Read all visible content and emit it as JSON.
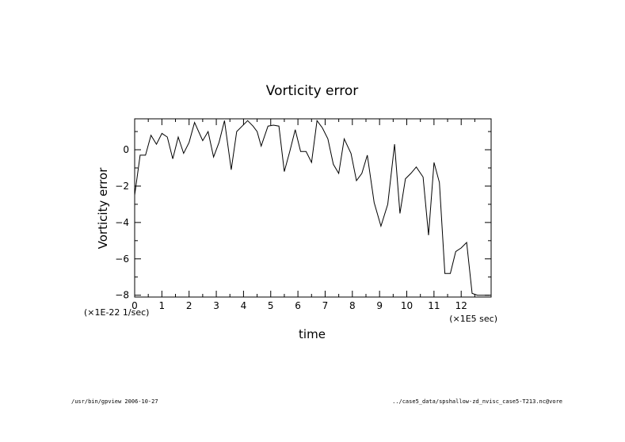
{
  "chart_data": {
    "type": "line",
    "title": "Vorticity error",
    "xlabel": "time",
    "ylabel": "Vorticity error",
    "x_unit": "(×1E5 sec)",
    "y_unit": "(×1E-22 1/sec)",
    "xlim": [
      0,
      13.1
    ],
    "ylim": [
      -8.1,
      1.7
    ],
    "x_ticks": [
      0,
      1,
      2,
      3,
      4,
      5,
      6,
      7,
      8,
      9,
      10,
      11,
      12
    ],
    "y_ticks": [
      0,
      -2,
      -4,
      -6,
      -8
    ],
    "grid": false,
    "legend": "none",
    "line_color": "#000000",
    "series": [
      {
        "x": [
          0.0,
          0.2,
          0.4,
          0.6,
          0.8,
          1.0,
          1.2,
          1.4,
          1.6,
          1.8,
          2.0,
          2.2,
          2.5,
          2.7,
          2.9,
          3.1,
          3.3,
          3.55,
          3.75,
          3.95,
          4.15,
          4.35,
          4.5,
          4.65,
          4.9,
          5.1,
          5.3,
          5.5,
          5.7,
          5.9,
          6.1,
          6.3,
          6.5,
          6.7,
          6.9,
          7.1,
          7.3,
          7.5,
          7.7,
          7.95,
          8.15,
          8.35,
          8.55,
          8.8,
          9.05,
          9.3,
          9.55,
          9.75,
          9.95,
          10.15,
          10.35,
          10.6,
          10.8,
          11.0,
          11.2,
          11.4,
          11.6,
          11.8,
          12.0,
          12.2,
          12.4,
          12.6,
          12.8,
          13.05
        ],
        "y": [
          -2.5,
          -0.3,
          -0.3,
          0.8,
          0.3,
          0.9,
          0.7,
          -0.5,
          0.7,
          -0.2,
          0.4,
          1.5,
          0.5,
          1.0,
          -0.4,
          0.4,
          1.6,
          -1.1,
          1.0,
          1.3,
          1.6,
          1.3,
          1.0,
          0.2,
          1.3,
          1.35,
          1.3,
          -1.2,
          -0.1,
          1.1,
          -0.1,
          -0.1,
          -0.7,
          1.6,
          1.2,
          0.6,
          -0.8,
          -1.3,
          0.6,
          -0.2,
          -1.7,
          -1.3,
          -0.3,
          -2.9,
          -4.2,
          -3.0,
          0.3,
          -3.5,
          -1.6,
          -1.3,
          -0.95,
          -1.5,
          -4.7,
          -0.7,
          -1.8,
          -6.8,
          -6.8,
          -5.6,
          -5.4,
          -5.1,
          -7.9,
          -8.0,
          -8.0,
          -8.0
        ]
      }
    ]
  },
  "footer": {
    "left": "/usr/bin/gpview  2006-10-27",
    "right": "../case5_data/spshallow-zd_nvisc_case5-T213.nc@vore"
  }
}
